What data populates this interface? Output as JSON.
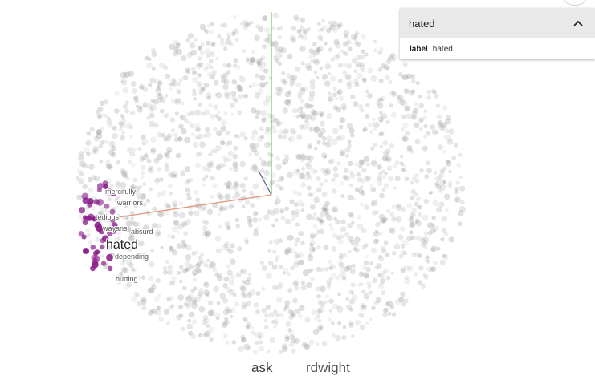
{
  "projection": {
    "selected_label": "hated",
    "neighbor_labels": [
      "mercifully",
      "warriors",
      "tedious",
      "wayans",
      "absurd",
      "depending",
      "hurting"
    ],
    "colors": {
      "point": "#9a9a9a",
      "neighbor": "#8b1f8a",
      "axis_y": "#66bb44",
      "axis_x": "#e2977a",
      "axis_z": "#4f5f86"
    }
  },
  "bottom_labels": [
    "ask",
    "rdwight"
  ],
  "inspector": {
    "search_value": "hated",
    "field_key": "label",
    "field_value": "hated",
    "collapse_icon": "chevron-up-icon"
  }
}
